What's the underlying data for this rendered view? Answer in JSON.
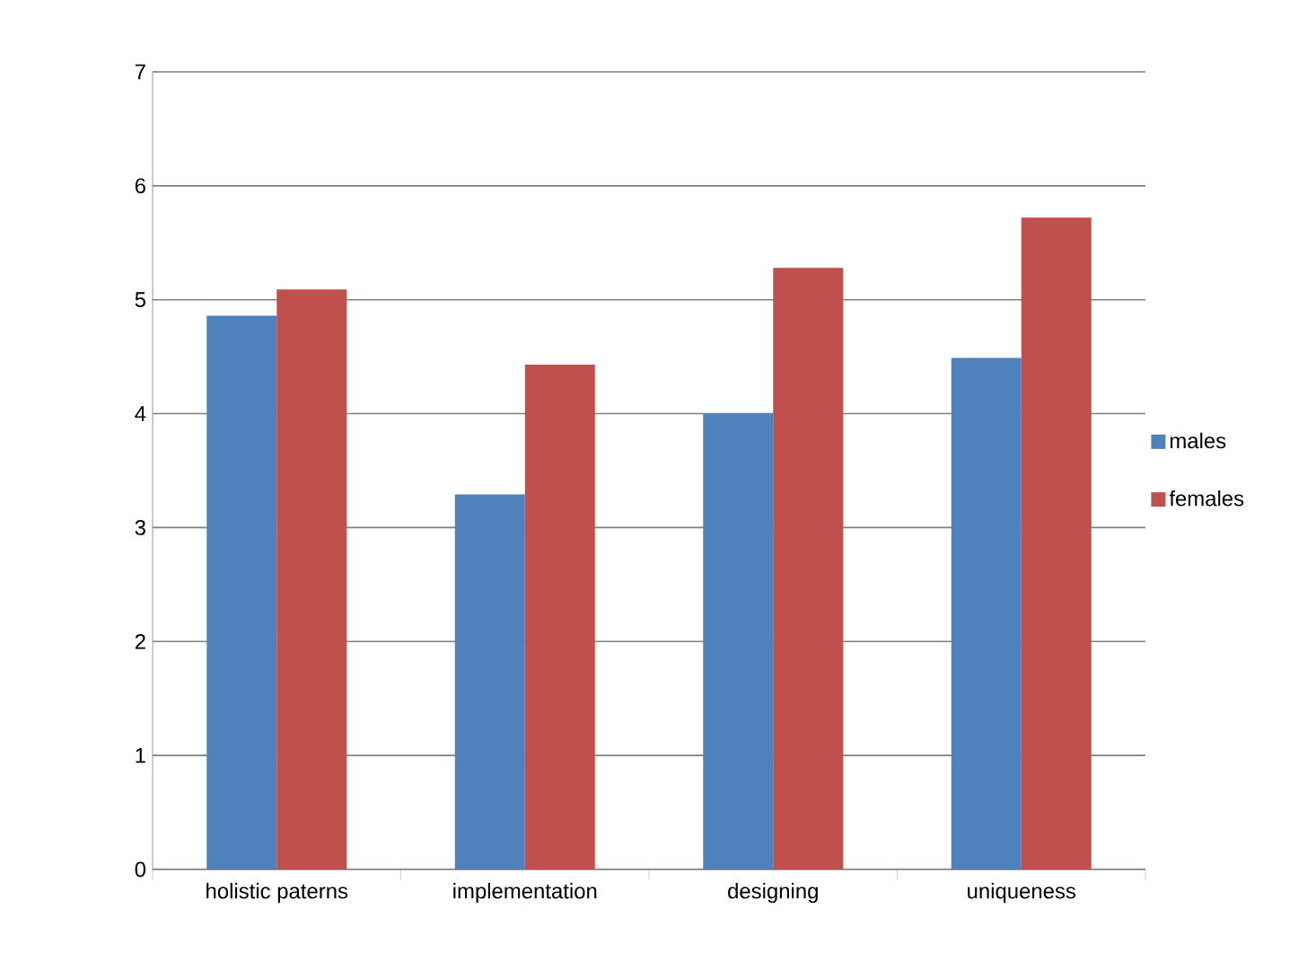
{
  "chart_data": {
    "type": "bar",
    "categories": [
      "holistic paterns",
      "implementation",
      "designing",
      "uniqueness"
    ],
    "series": [
      {
        "name": "males",
        "color": "#4f81bd",
        "values": [
          4.86,
          3.29,
          4.0,
          4.49
        ]
      },
      {
        "name": "females",
        "color": "#c0504d",
        "values": [
          5.09,
          4.43,
          5.28,
          5.72
        ]
      }
    ],
    "ylim": [
      0,
      7
    ],
    "yticks": [
      0,
      1,
      2,
      3,
      4,
      5,
      6,
      7
    ],
    "grid": "y",
    "legend": "right"
  }
}
